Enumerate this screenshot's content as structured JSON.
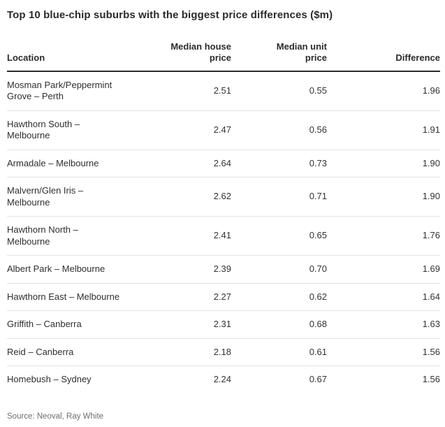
{
  "title": "Top 10 blue-chip suburbs with the biggest price differences ($m)",
  "source": "Source: Neoval, Ray White",
  "colors": {
    "title_text": "#2b2b2b",
    "header_rule": "#2b2b2b",
    "row_separator": "#e3e3e3",
    "body_text": "#333333",
    "source_text": "#6e6e6e",
    "background": "#ffffff"
  },
  "table": {
    "headers": {
      "location": "Location",
      "house": "Median house\nprice",
      "unit": "Median unit\nprice",
      "difference": "Difference"
    },
    "rows": [
      {
        "location": "Mosman Park/Peppermint\nGrove – Perth",
        "house": "2.51",
        "unit": "0.55",
        "difference": "1.96"
      },
      {
        "location": "Hawthorn South –\nMelbourne",
        "house": "2.47",
        "unit": "0.56",
        "difference": "1.91"
      },
      {
        "location": "Armadale – Melbourne",
        "house": "2.64",
        "unit": "0.73",
        "difference": "1.90"
      },
      {
        "location": "Malvern/Glen Iris –\nMelbourne",
        "house": "2.62",
        "unit": "0.71",
        "difference": "1.90"
      },
      {
        "location": "Hawthorn North –\nMelbourne",
        "house": "2.41",
        "unit": "0.65",
        "difference": "1.76"
      },
      {
        "location": "Albert Park – Melbourne",
        "house": "2.39",
        "unit": "0.70",
        "difference": "1.69"
      },
      {
        "location": "Hawthorn East – Melbourne",
        "house": "2.27",
        "unit": "0.62",
        "difference": "1.64"
      },
      {
        "location": "Griffith – Canberra",
        "house": "2.31",
        "unit": "0.68",
        "difference": "1.63"
      },
      {
        "location": "Reid – Canberra",
        "house": "2.18",
        "unit": "0.61",
        "difference": "1.56"
      },
      {
        "location": "Homebush – Sydney",
        "house": "2.24",
        "unit": "0.67",
        "difference": "1.56"
      }
    ]
  },
  "chart_data": {
    "type": "table",
    "title": "Top 10 blue-chip suburbs with the biggest price differences ($m)",
    "columns": [
      "Location",
      "Median house price",
      "Median unit price",
      "Difference"
    ],
    "rows": [
      [
        "Mosman Park/Peppermint Grove – Perth",
        2.51,
        0.55,
        1.96
      ],
      [
        "Hawthorn South – Melbourne",
        2.47,
        0.56,
        1.91
      ],
      [
        "Armadale – Melbourne",
        2.64,
        0.73,
        1.9
      ],
      [
        "Malvern/Glen Iris – Melbourne",
        2.62,
        0.71,
        1.9
      ],
      [
        "Hawthorn North – Melbourne",
        2.41,
        0.65,
        1.76
      ],
      [
        "Albert Park – Melbourne",
        2.39,
        0.7,
        1.69
      ],
      [
        "Hawthorn East – Melbourne",
        2.27,
        0.62,
        1.64
      ],
      [
        "Griffith – Canberra",
        2.31,
        0.68,
        1.63
      ],
      [
        "Reid – Canberra",
        2.18,
        0.61,
        1.56
      ],
      [
        "Homebush – Sydney",
        2.24,
        0.67,
        1.56
      ]
    ],
    "units": "$m",
    "source": "Source: Neoval, Ray White",
    "layout_hints": {
      "numeric_columns_alignment": "right",
      "header_rule": "thick dark line under header row",
      "row_separators": "thin light gray lines",
      "grid": "horizontal only"
    }
  }
}
